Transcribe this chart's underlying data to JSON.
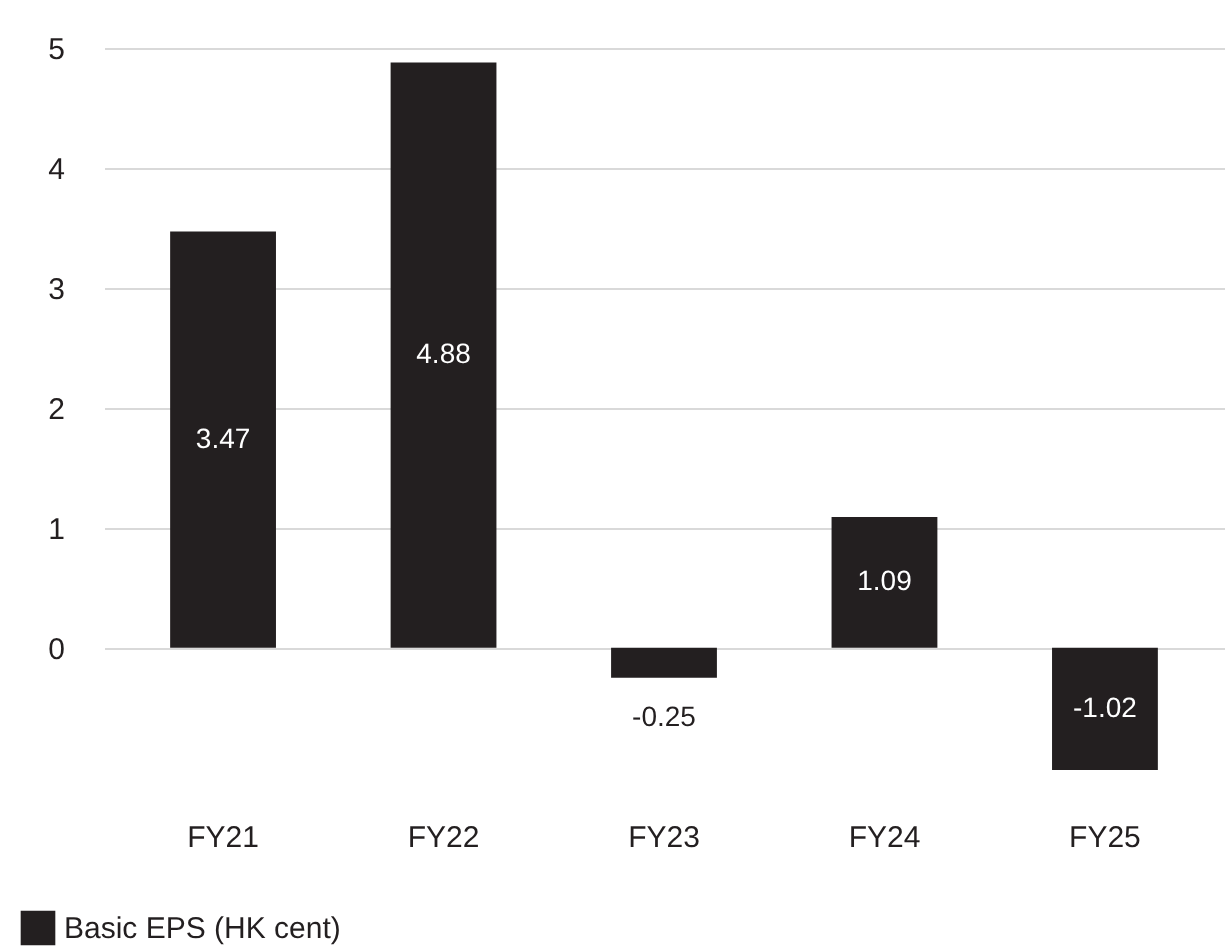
{
  "chart_data": {
    "type": "bar",
    "categories": [
      "FY21",
      "FY22",
      "FY23",
      "FY24",
      "FY25"
    ],
    "series": [
      {
        "name": "Basic EPS (HK cent)",
        "color": "#231f20",
        "values": [
          3.47,
          4.88,
          -0.25,
          1.09,
          -1.02
        ]
      }
    ],
    "ylim": [
      -1.02,
      5
    ],
    "yticks": [
      0,
      1,
      2,
      3,
      4,
      5
    ],
    "grid": "y",
    "data_labels": true,
    "legend": "bottom left"
  }
}
